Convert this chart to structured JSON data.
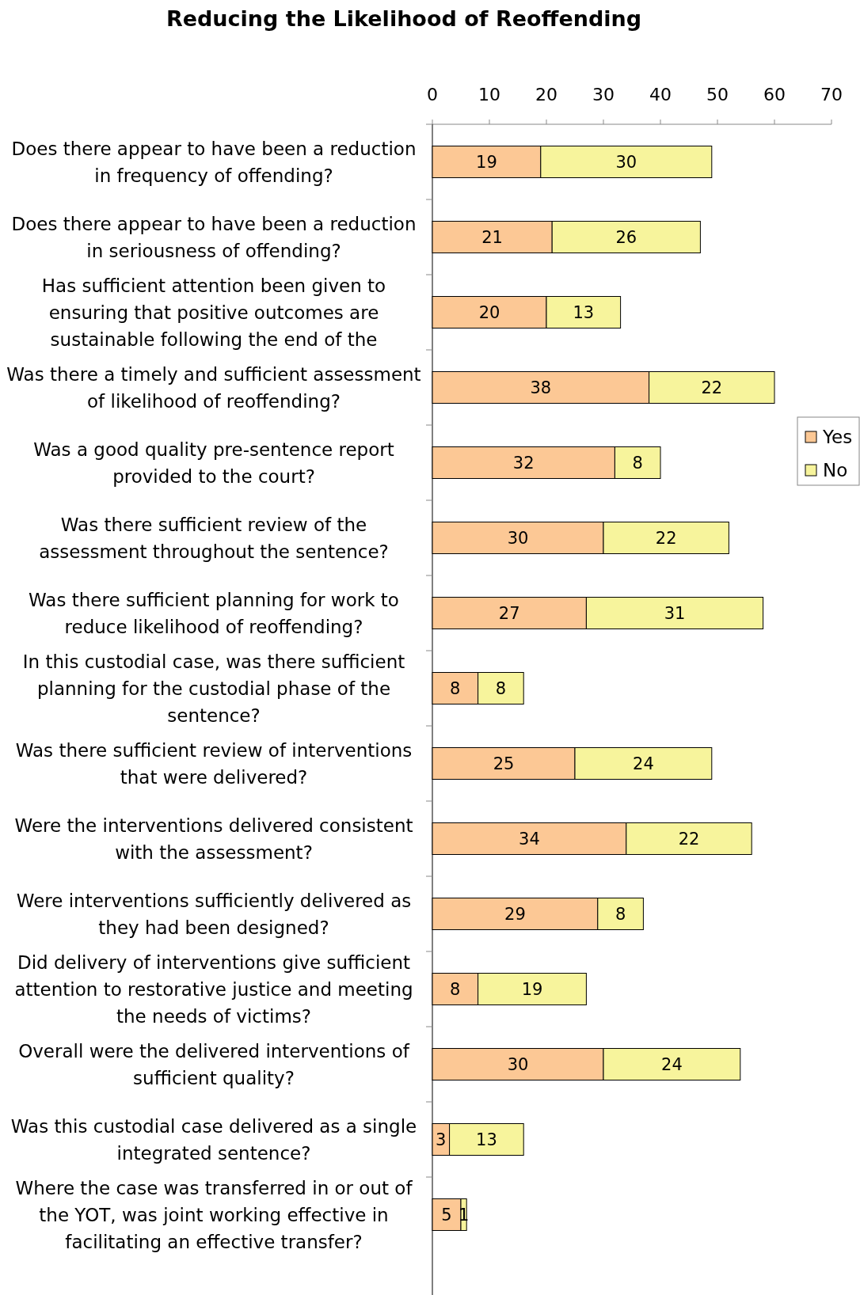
{
  "chart_data": {
    "type": "bar",
    "orientation": "horizontal",
    "stacked": true,
    "title": "Reducing the Likelihood of Reoffending",
    "categories": [
      "Does there appear to have been a reduction in frequency of offending?",
      "Does there appear to have been a reduction in seriousness of offending?",
      "Has sufficient attention been given to ensuring that positive outcomes are sustainable following the end of the",
      "Was there a timely and sufficient assessment of likelihood of reoffending?",
      "Was a good quality pre-sentence report provided to the court?",
      "Was there sufficient review of the assessment throughout the sentence?",
      "Was there sufficient planning for work to reduce likelihood of reoffending?",
      "In this custodial case, was there sufficient planning for the custodial phase of the sentence?",
      "Was there sufficient review of interventions that were delivered?",
      "Were the interventions delivered consistent with the assessment?",
      "Were interventions sufficiently delivered as they had been designed?",
      "Did delivery of interventions give sufficient attention to restorative justice and meeting the needs of victims?",
      "Overall were the delivered interventions of sufficient quality?",
      "Was this custodial case delivered as a single integrated sentence?",
      "Where the case was transferred in or out of the YOT, was joint working effective in facilitating an effective transfer?"
    ],
    "series": [
      {
        "name": "Yes",
        "color": "#fcc895",
        "values": [
          19,
          21,
          20,
          38,
          32,
          30,
          27,
          8,
          25,
          34,
          29,
          8,
          30,
          3,
          5
        ]
      },
      {
        "name": "No",
        "color": "#f7f49c",
        "values": [
          30,
          26,
          13,
          22,
          8,
          22,
          31,
          8,
          24,
          22,
          8,
          19,
          24,
          13,
          1
        ]
      }
    ],
    "xlim": [
      0,
      70
    ],
    "xticks": [
      0,
      10,
      20,
      30,
      40,
      50,
      60,
      70
    ],
    "data_labels": true,
    "legend": "right",
    "grid": false
  }
}
